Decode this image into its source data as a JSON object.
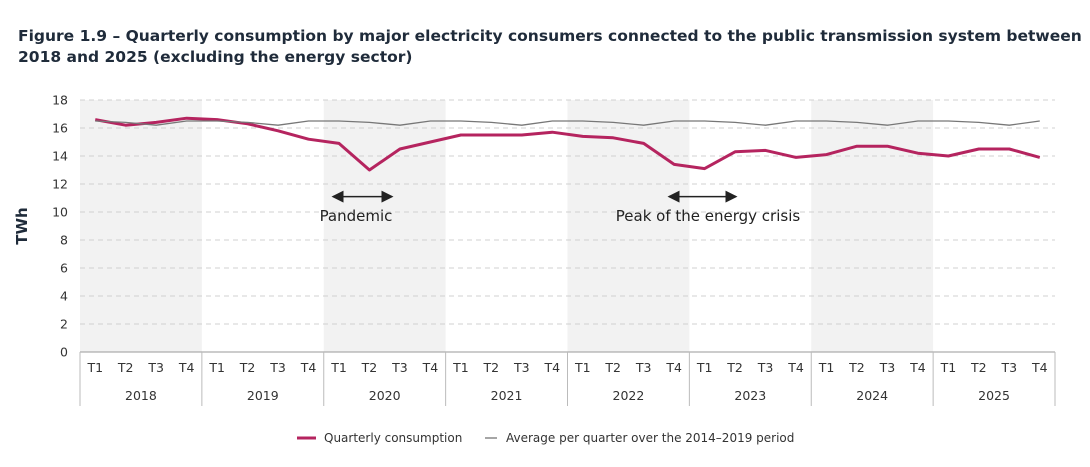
{
  "title": "Figure 1.9 – Quarterly consumption by major electricity consumers connected to the public transmission system between 2018 and 2025 (excluding the energy sector)",
  "chart_data": {
    "type": "line",
    "ylabel": "TWh",
    "ylim": [
      0,
      18
    ],
    "yticks": [
      "0",
      "2",
      "4",
      "6",
      "8",
      "10",
      "12",
      "14",
      "16",
      "18"
    ],
    "grid": "horizontal dashed",
    "legend_position": "bottom",
    "years": [
      "2018",
      "2019",
      "2020",
      "2021",
      "2022",
      "2023",
      "2024",
      "2025"
    ],
    "quarters": [
      "T1",
      "T2",
      "T3",
      "T4"
    ],
    "series": [
      {
        "name": "Quarterly consumption",
        "color": "#b5245f",
        "values": [
          16.6,
          16.2,
          16.4,
          16.7,
          16.6,
          16.3,
          15.8,
          15.2,
          14.9,
          13.0,
          14.5,
          15.0,
          15.5,
          15.5,
          15.5,
          15.7,
          15.4,
          15.3,
          14.9,
          13.4,
          13.1,
          14.3,
          14.4,
          13.9,
          14.1,
          14.7,
          14.7,
          14.2,
          14.0,
          14.5,
          14.5,
          13.9
        ]
      },
      {
        "name": "Average per quarter over the 2014–2019 period",
        "color": "#777777",
        "values": [
          16.5,
          16.4,
          16.2,
          16.5,
          16.5,
          16.4,
          16.2,
          16.5,
          16.5,
          16.4,
          16.2,
          16.5,
          16.5,
          16.4,
          16.2,
          16.5,
          16.5,
          16.4,
          16.2,
          16.5,
          16.5,
          16.4,
          16.2,
          16.5,
          16.5,
          16.4,
          16.2,
          16.5,
          16.5,
          16.4,
          16.2,
          16.5
        ]
      }
    ],
    "annotations": [
      {
        "text": "Pandemic",
        "from": "2020 T1",
        "to": "2020 T3"
      },
      {
        "text": "Peak of the energy crisis",
        "from": "2023 T1",
        "to": "2023 T2"
      }
    ],
    "shaded_years": [
      "2018",
      "2020",
      "2022",
      "2024"
    ]
  }
}
